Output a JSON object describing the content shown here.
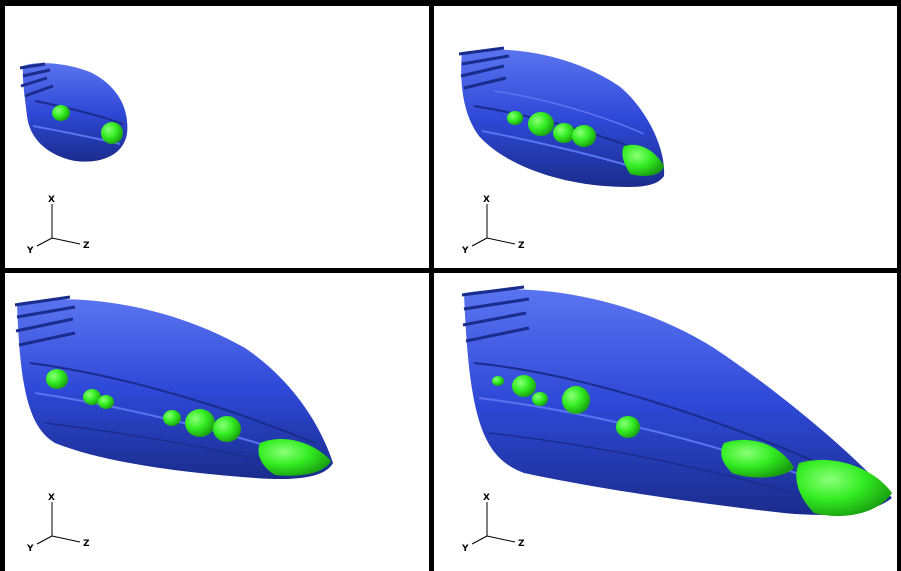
{
  "panels": [
    {
      "id": "p1",
      "axes": {
        "x": "X",
        "y": "Y",
        "z": "Z"
      }
    },
    {
      "id": "p2",
      "axes": {
        "x": "X",
        "y": "Y",
        "z": "Z"
      }
    },
    {
      "id": "p3",
      "axes": {
        "x": "X",
        "y": "Y",
        "z": "Z"
      }
    },
    {
      "id": "p4",
      "axes": {
        "x": "X",
        "y": "Y",
        "z": "Z"
      }
    }
  ],
  "colors": {
    "surface": "#2f49d8",
    "surface_dark": "#1a2c8c",
    "surface_light": "#5a74f0",
    "bubble": "#33ee22",
    "bubble_dark": "#1a9e10",
    "frame": "#000000",
    "background": "#ffffff"
  }
}
